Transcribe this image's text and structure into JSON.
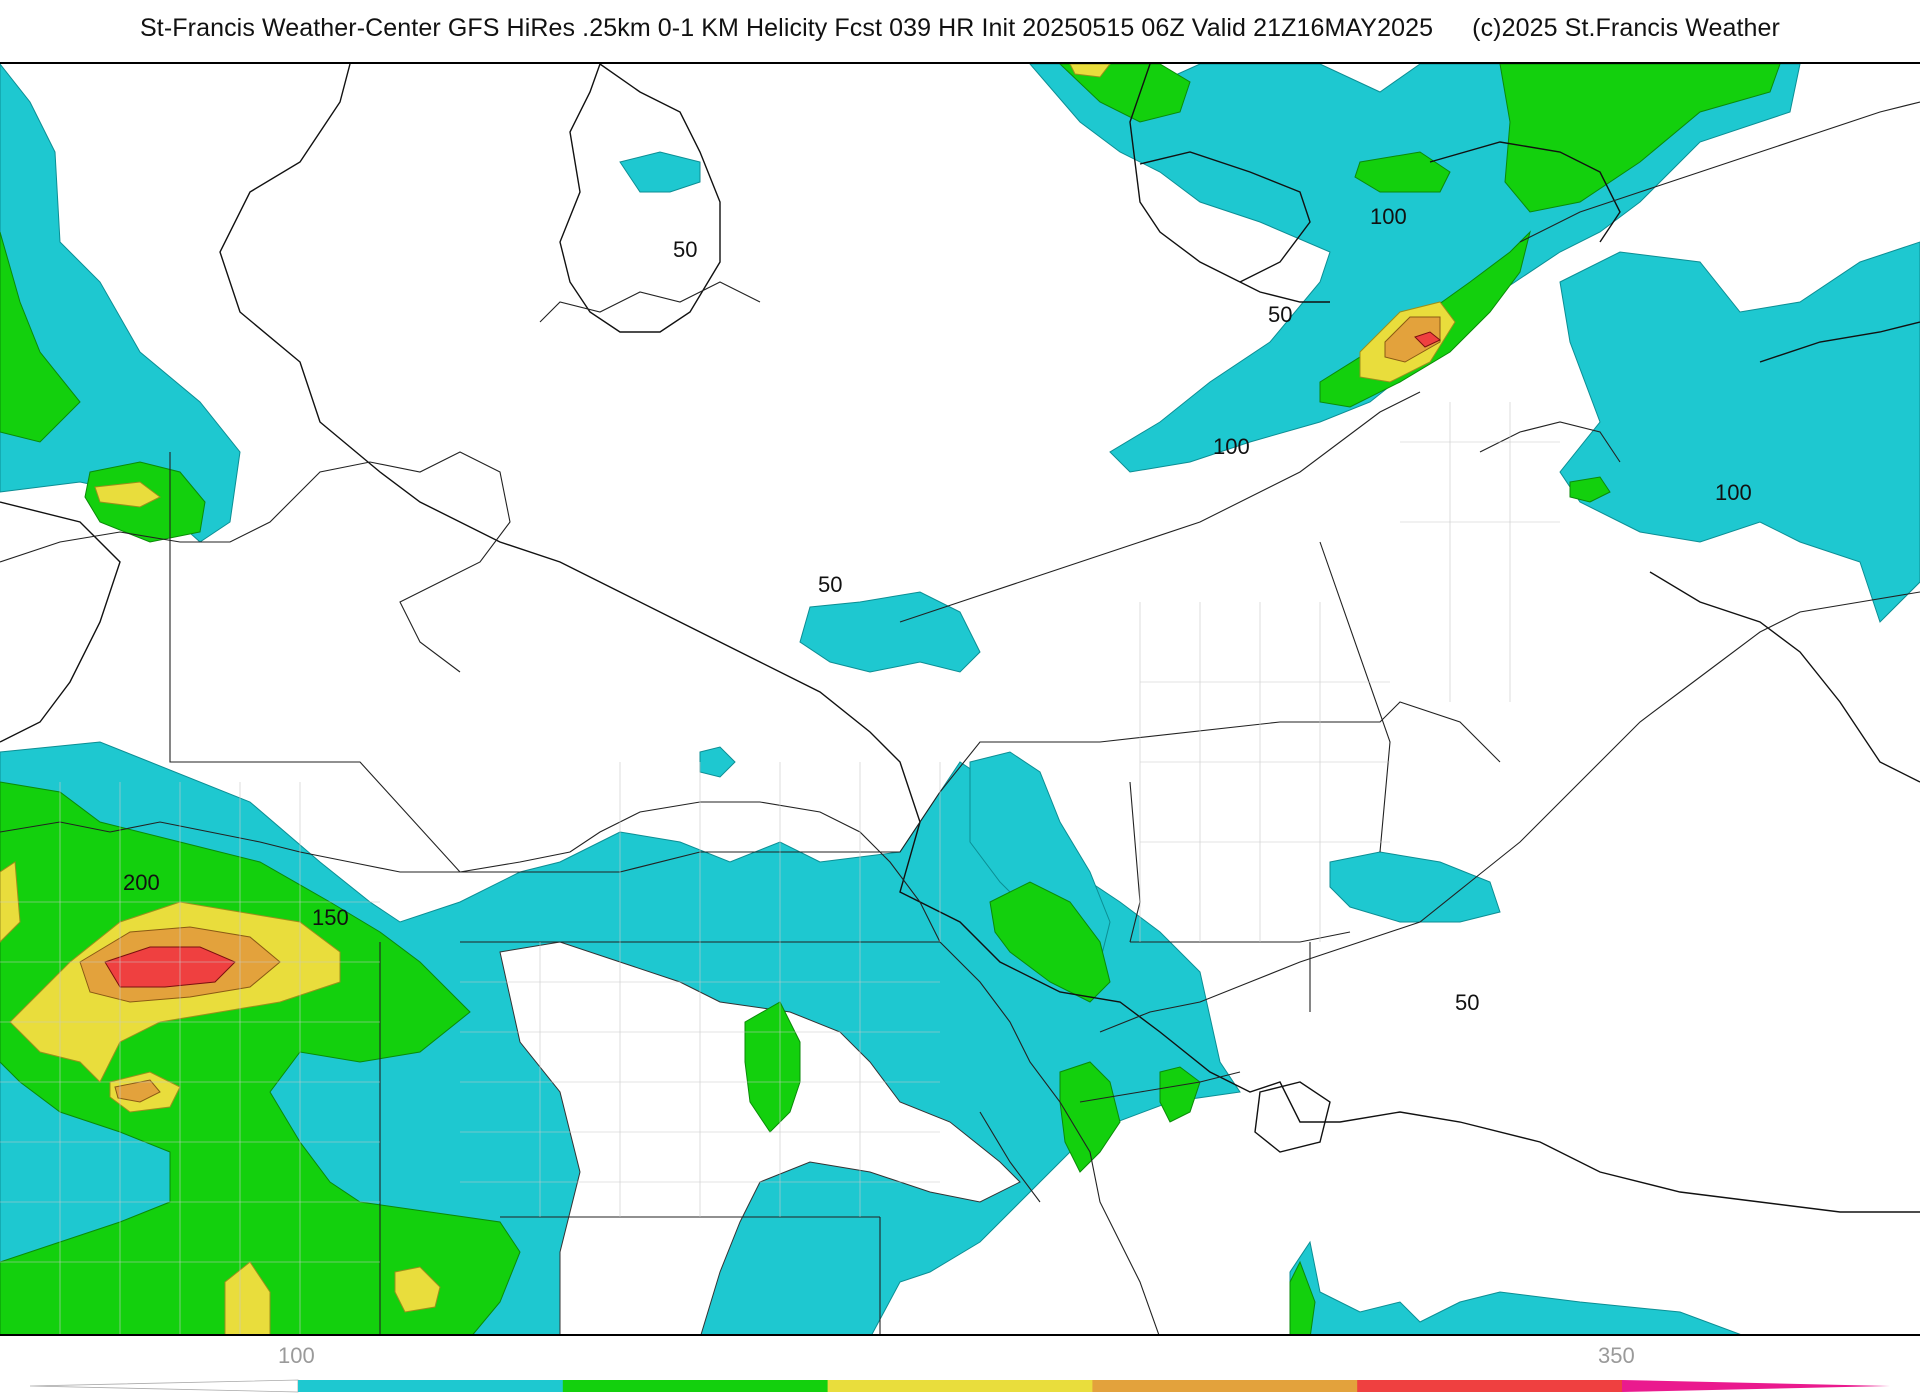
{
  "header": {
    "title_main": "St-Francis Weather-Center GFS HiRes .25km 0-1 KM Helicity Fcst 039 HR Init 20250515 06Z  Valid 21Z16MAY2025",
    "copyright": "(c)2025 St.Francis Weather"
  },
  "contour_labels": {
    "l1": "50",
    "l2": "50",
    "l3": "100",
    "l4": "100",
    "l5": "100",
    "l6": "50",
    "l7": "200",
    "l8": "150",
    "l9": "50"
  },
  "legend": {
    "label_low": "100",
    "label_high": "350",
    "colors": [
      "#1ec8d0",
      "#13d00d",
      "#e9dd3c",
      "#e3a23c",
      "#ef4040",
      "#ea1a8e"
    ]
  }
}
